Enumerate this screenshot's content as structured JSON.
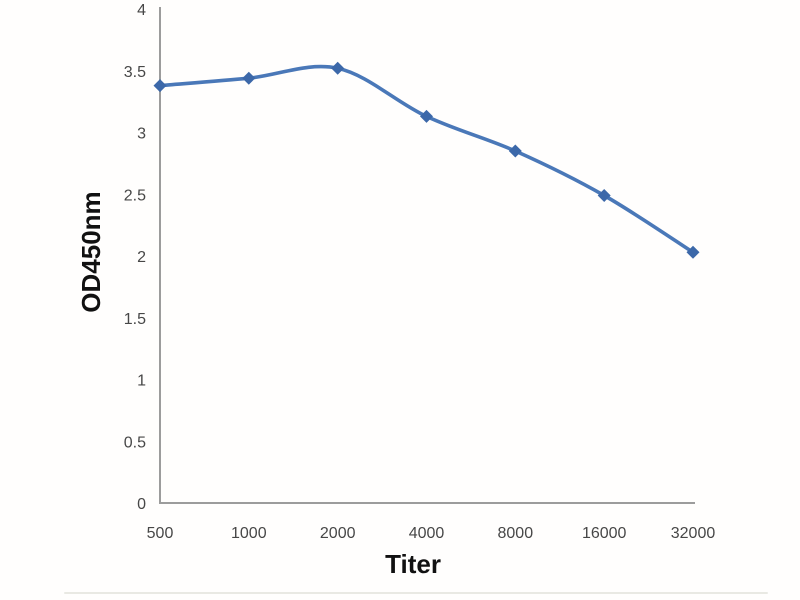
{
  "chart_data": {
    "type": "line",
    "title": "",
    "xlabel": "Titer",
    "ylabel": "OD450nm",
    "categories": [
      "500",
      "1000",
      "2000",
      "4000",
      "8000",
      "16000",
      "32000"
    ],
    "series": [
      {
        "name": "OD450nm",
        "values": [
          3.38,
          3.44,
          3.52,
          3.13,
          2.85,
          2.49,
          2.03
        ]
      }
    ],
    "ylim": [
      0,
      4
    ],
    "y_ticks": [
      "0",
      "0.5",
      "1",
      "1.5",
      "2",
      "2.5",
      "3",
      "3.5",
      "4"
    ],
    "grid": "off",
    "legend": "none",
    "smooth": true,
    "marker_shape": "diamond",
    "colors": {
      "line": "#4a78b8",
      "marker": "#3c68a9",
      "axis": "#9c9c9c",
      "tick_label": "#474747",
      "axis_title": "#111111"
    }
  }
}
